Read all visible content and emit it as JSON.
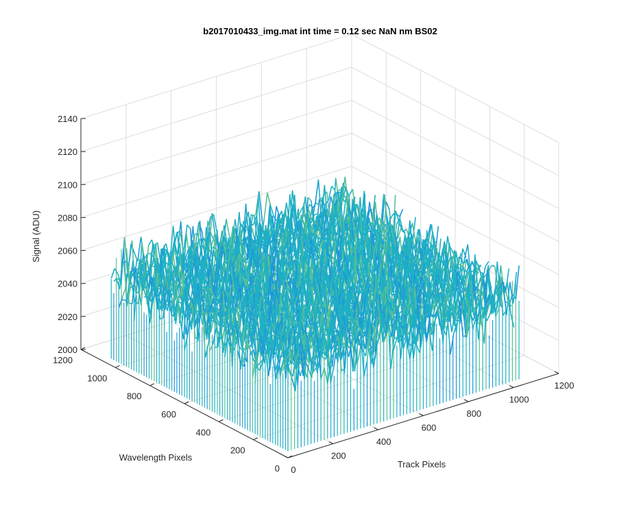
{
  "chart_data": {
    "type": "surface",
    "title": "b2017010433_img.mat int time = 0.12 sec  NaN nm BS02",
    "xlabel": "Track Pixels",
    "ylabel": "Wavelength Pixels",
    "zlabel": "Signal (ADU)",
    "xlim": [
      0,
      1200
    ],
    "ylim": [
      0,
      1200
    ],
    "zlim": [
      2000,
      2140
    ],
    "x_ticks": [
      "0",
      "200",
      "400",
      "600",
      "800",
      "1000",
      "1200"
    ],
    "y_ticks": [
      "0",
      "200",
      "400",
      "600",
      "800",
      "1000",
      "1200"
    ],
    "z_ticks": [
      "2000",
      "2020",
      "2040",
      "2060",
      "2080",
      "2100",
      "2120",
      "2140"
    ],
    "grid": true,
    "colormap": "parula",
    "data_extent": {
      "x": [
        0,
        1024
      ],
      "y": [
        0,
        1024
      ]
    },
    "signal_mean": 2055,
    "signal_min": 2010,
    "signal_max": 2135,
    "colors": [
      "#0072bd",
      "#1e97d9",
      "#1fb0c4",
      "#57bf96",
      "#9cc264",
      "#d6c043",
      "#efc33a"
    ]
  }
}
